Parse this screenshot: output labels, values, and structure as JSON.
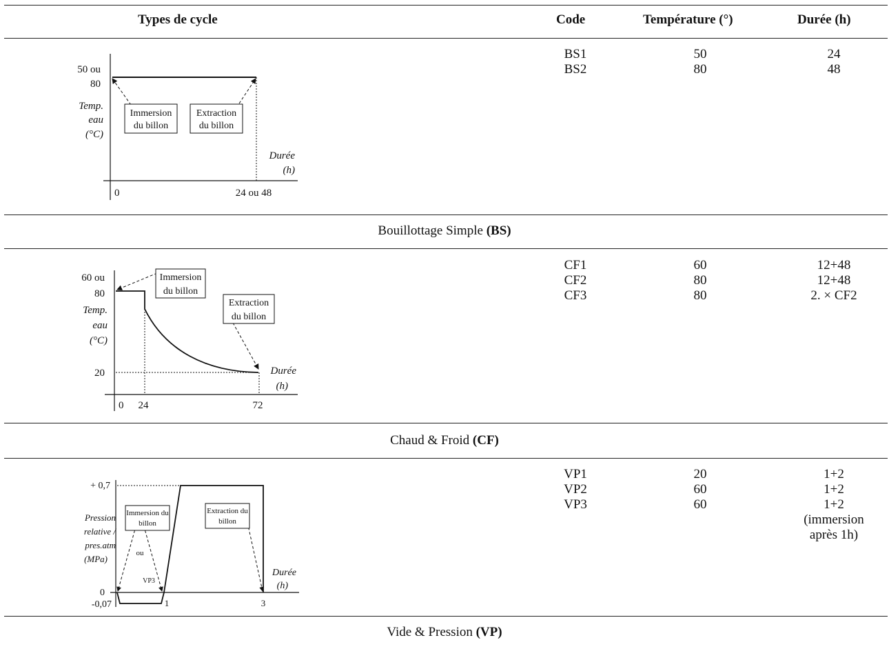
{
  "headers": {
    "types": "Types de cycle",
    "code": "Code",
    "temperature": "Température (°)",
    "duree": "Durée (h)"
  },
  "sections": [
    {
      "caption_prefix": "Bouillottage Simple ",
      "caption_code": "(BS)",
      "rows": [
        {
          "code": "BS1",
          "temp": "50",
          "duree": "24"
        },
        {
          "code": "BS2",
          "temp": "80",
          "duree": "48"
        }
      ],
      "figure": {
        "y_top_1": "50 ou",
        "y_top_2": "80",
        "y_label": [
          "Temp.",
          "eau",
          "(°C)"
        ],
        "box1": [
          "Immersion",
          "du billon"
        ],
        "box2": [
          "Extraction",
          "du billon"
        ],
        "x_label": [
          "Durée",
          "(h)"
        ],
        "x0": "0",
        "x1": "24 ou 48"
      }
    },
    {
      "caption_prefix": "Chaud & Froid ",
      "caption_code": "(CF)",
      "rows": [
        {
          "code": "CF1",
          "temp": "60",
          "duree": "12+48"
        },
        {
          "code": "CF2",
          "temp": "80",
          "duree": "12+48"
        },
        {
          "code": "CF3",
          "temp": "80",
          "duree": "2. × CF2"
        }
      ],
      "figure": {
        "y_top_1": "60 ou",
        "y_top_2": "80",
        "y_label": [
          "Temp.",
          "eau",
          "(°C)"
        ],
        "y_low": "20",
        "box1": [
          "Immersion",
          "du billon"
        ],
        "box2": [
          "Extraction",
          "du billon"
        ],
        "x_label": [
          "Durée",
          "(h)"
        ],
        "x0": "0",
        "x1": "24",
        "x2": "72"
      }
    },
    {
      "caption_prefix": "Vide & Pression ",
      "caption_code": "(VP)",
      "rows": [
        {
          "code": "VP1",
          "temp": "20",
          "duree": "1+2"
        },
        {
          "code": "VP2",
          "temp": "60",
          "duree": "1+2"
        },
        {
          "code": "VP3",
          "temp": "60",
          "duree": "1+2"
        }
      ],
      "extra_duree": [
        "(immersion",
        "après 1h)"
      ],
      "figure": {
        "y_top": "+ 0,7",
        "y_label": [
          "Pression",
          "relative /",
          "pres.atm",
          "(MPa)"
        ],
        "y_zero": "0",
        "y_neg": "-0,07",
        "box1": [
          "Immersion du",
          "billon"
        ],
        "box2": [
          "Extraction du",
          "billon"
        ],
        "ou": "ou",
        "vp3": "VP3",
        "x_label": [
          "Durée",
          "(h)"
        ],
        "x1": "1",
        "x3": "3"
      }
    }
  ]
}
